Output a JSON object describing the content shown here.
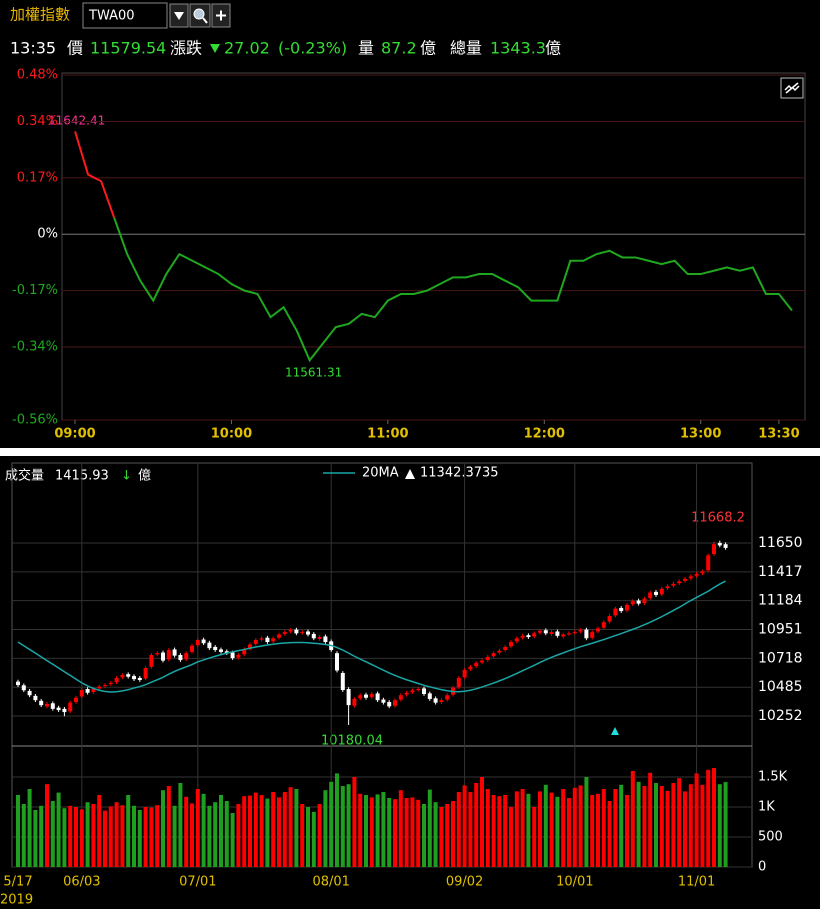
{
  "header": {
    "title": "加權指數",
    "symbol": "TWA00",
    "time": "13:35",
    "price_label": "價",
    "price": 11579.54,
    "change_label": "漲跌",
    "change": 27.02,
    "change_pct": "(-0.23%)",
    "volume_label": "量",
    "volume": 87.2,
    "volume_unit": "億",
    "total_label": "總量",
    "total": 1343.3,
    "total_unit": "億"
  },
  "chart_data": [
    {
      "type": "line",
      "x": [
        "09:00",
        "09:05",
        "09:10",
        "09:15",
        "09:20",
        "09:25",
        "09:30",
        "09:35",
        "09:40",
        "09:45",
        "09:50",
        "09:55",
        "10:00",
        "10:05",
        "10:10",
        "10:15",
        "10:20",
        "10:25",
        "10:30",
        "10:35",
        "10:40",
        "10:45",
        "10:50",
        "10:55",
        "11:00",
        "11:05",
        "11:10",
        "11:15",
        "11:20",
        "11:25",
        "11:30",
        "11:35",
        "11:40",
        "11:45",
        "11:50",
        "11:55",
        "12:00",
        "12:05",
        "12:10",
        "12:15",
        "12:20",
        "12:25",
        "12:30",
        "12:35",
        "12:40",
        "12:45",
        "12:50",
        "12:55",
        "13:00",
        "13:05",
        "13:10",
        "13:15",
        "13:20",
        "13:25",
        "13:30",
        "13:35"
      ],
      "values": [
        0.31,
        0.18,
        0.16,
        0.05,
        -0.06,
        -0.14,
        -0.2,
        -0.12,
        -0.06,
        -0.08,
        -0.1,
        -0.12,
        -0.15,
        -0.17,
        -0.18,
        -0.25,
        -0.22,
        -0.29,
        -0.38,
        -0.33,
        -0.28,
        -0.27,
        -0.24,
        -0.25,
        -0.2,
        -0.18,
        -0.18,
        -0.17,
        -0.15,
        -0.13,
        -0.13,
        -0.12,
        -0.12,
        -0.14,
        -0.16,
        -0.2,
        -0.2,
        -0.2,
        -0.08,
        -0.08,
        -0.06,
        -0.05,
        -0.07,
        -0.07,
        -0.08,
        -0.09,
        -0.08,
        -0.12,
        -0.12,
        -0.11,
        -0.1,
        -0.11,
        -0.1,
        -0.18,
        -0.18,
        -0.23
      ],
      "up_color": "#ff1a1a",
      "down_color": "#1fa81f",
      "xlim": [
        "08:55",
        "13:40"
      ],
      "xticks": [
        "09:00",
        "10:00",
        "11:00",
        "12:00",
        "13:00",
        "13:30"
      ],
      "ylim": [
        -0.56,
        0.48
      ],
      "yticks": [
        {
          "value": 0.48,
          "label": "0.48%"
        },
        {
          "value": 0.34,
          "label": "0.34%"
        },
        {
          "value": 0.17,
          "label": "0.17%"
        },
        {
          "value": 0,
          "label": "0%"
        },
        {
          "value": -0.17,
          "label": "-0.17%"
        },
        {
          "value": -0.34,
          "label": "-0.34%"
        },
        {
          "value": -0.56,
          "label": "-0.56%"
        }
      ],
      "grid": true,
      "high_label": 11642.41,
      "low_label": 11561.31
    },
    {
      "type": "candlestick",
      "volume_title": "成交量",
      "volume_unit": "億",
      "year": "2019",
      "categories": [
        "5/17",
        null,
        null,
        null,
        null,
        null,
        null,
        null,
        null,
        null,
        null,
        "06/03",
        null,
        null,
        null,
        null,
        null,
        null,
        null,
        null,
        null,
        null,
        null,
        null,
        null,
        null,
        null,
        null,
        null,
        null,
        null,
        "07/01",
        null,
        null,
        null,
        null,
        null,
        null,
        null,
        null,
        null,
        null,
        null,
        null,
        null,
        null,
        null,
        null,
        null,
        null,
        null,
        null,
        null,
        null,
        "08/01",
        null,
        null,
        null,
        null,
        null,
        null,
        null,
        null,
        null,
        null,
        null,
        null,
        null,
        null,
        null,
        null,
        null,
        null,
        null,
        null,
        null,
        null,
        "09/02",
        null,
        null,
        null,
        null,
        null,
        null,
        null,
        null,
        null,
        null,
        null,
        null,
        null,
        null,
        null,
        null,
        null,
        null,
        "10/01",
        null,
        null,
        null,
        null,
        null,
        null,
        null,
        null,
        null,
        null,
        null,
        null,
        null,
        null,
        null,
        null,
        null,
        null,
        null,
        null,
        "11/01",
        null,
        null,
        null,
        null,
        null
      ],
      "open": [
        10530,
        10500,
        10455,
        10415,
        10375,
        10330,
        10355,
        10320,
        10310,
        10290,
        10365,
        10410,
        10470,
        10445,
        10475,
        10495,
        10510,
        10525,
        10565,
        10590,
        10575,
        10560,
        10555,
        10650,
        10750,
        10765,
        10710,
        10790,
        10745,
        10710,
        10770,
        10825,
        10870,
        10845,
        10810,
        10790,
        10775,
        10765,
        10725,
        10750,
        10795,
        10835,
        10870,
        10885,
        10855,
        10885,
        10915,
        10935,
        10950,
        10925,
        10935,
        10915,
        10875,
        10895,
        10855,
        10760,
        10600,
        10470,
        10335,
        10395,
        10425,
        10405,
        10435,
        10385,
        10365,
        10335,
        10385,
        10425,
        10445,
        10465,
        10475,
        10435,
        10395,
        10365,
        10385,
        10425,
        10485,
        10565,
        10630,
        10655,
        10685,
        10705,
        10735,
        10765,
        10785,
        10815,
        10855,
        10885,
        10905,
        10895,
        10925,
        10945,
        10915,
        10935,
        10895,
        10915,
        10925,
        10935,
        10950,
        10885,
        10935,
        10965,
        11015,
        11065,
        11125,
        11105,
        11155,
        11185,
        11165,
        11205,
        11255,
        11235,
        11285,
        11305,
        11325,
        11345,
        11365,
        11385,
        11405,
        11430,
        11560,
        11650,
        11640
      ],
      "high": [
        10545,
        10515,
        10470,
        10430,
        10390,
        10365,
        10370,
        10335,
        10325,
        10375,
        10415,
        10477,
        10485,
        10485,
        10505,
        10517,
        10535,
        10575,
        10598,
        10605,
        10590,
        10575,
        10655,
        10760,
        10775,
        10780,
        10800,
        10805,
        10760,
        10775,
        10835,
        10881,
        10885,
        10860,
        10825,
        10805,
        10790,
        10780,
        10760,
        10805,
        10845,
        10881,
        10895,
        10900,
        10895,
        10925,
        10945,
        10962,
        10965,
        10945,
        10950,
        10930,
        10905,
        10910,
        10870,
        10775,
        10615,
        10485,
        10405,
        10435,
        10440,
        10445,
        10450,
        10400,
        10380,
        10395,
        10435,
        10455,
        10475,
        10485,
        10490,
        10450,
        10410,
        10395,
        10435,
        10495,
        10575,
        10639,
        10665,
        10695,
        10715,
        10745,
        10775,
        10795,
        10825,
        10865,
        10895,
        10915,
        10920,
        10935,
        10955,
        10960,
        10945,
        10950,
        10925,
        10935,
        10945,
        10962,
        10965,
        10945,
        10975,
        11025,
        11075,
        11135,
        11140,
        11165,
        11195,
        11200,
        11215,
        11265,
        11270,
        11295,
        11315,
        11335,
        11355,
        11375,
        11395,
        11415,
        11435,
        11565,
        11660,
        11668.2,
        11655
      ],
      "low": [
        10487,
        10445,
        10405,
        10365,
        10325,
        10315,
        10295,
        10285,
        10250,
        10275,
        10350,
        10395,
        10425,
        10430,
        10460,
        10480,
        10495,
        10510,
        10550,
        10555,
        10535,
        10528,
        10540,
        10635,
        10735,
        10685,
        10695,
        10725,
        10689,
        10695,
        10755,
        10810,
        10825,
        10785,
        10770,
        10755,
        10745,
        10705,
        10710,
        10735,
        10780,
        10820,
        10855,
        10835,
        10840,
        10870,
        10900,
        10920,
        10905,
        10910,
        10895,
        10865,
        10860,
        10835,
        10770,
        10605,
        10447,
        10180.04,
        10320,
        10380,
        10385,
        10390,
        10365,
        10345,
        10315,
        10320,
        10370,
        10410,
        10430,
        10450,
        10415,
        10375,
        10345,
        10350,
        10370,
        10410,
        10470,
        10550,
        10615,
        10640,
        10670,
        10690,
        10720,
        10750,
        10770,
        10800,
        10840,
        10870,
        10875,
        10880,
        10910,
        10905,
        10900,
        10885,
        10880,
        10900,
        10910,
        10920,
        10865,
        10870,
        10920,
        10950,
        11000,
        11050,
        11085,
        11090,
        11140,
        11145,
        11150,
        11190,
        11215,
        11220,
        11270,
        11290,
        11310,
        11330,
        11350,
        11370,
        11390,
        11415,
        11545,
        11615,
        11595
      ],
      "close": [
        10502,
        10460,
        10420,
        10380,
        10340,
        10350,
        10310,
        10300,
        10284,
        10360,
        10400,
        10462,
        10440,
        10470,
        10490,
        10502,
        10520,
        10560,
        10583,
        10570,
        10550,
        10543,
        10640,
        10745,
        10760,
        10700,
        10785,
        10740,
        10704,
        10760,
        10820,
        10866,
        10840,
        10800,
        10785,
        10770,
        10760,
        10720,
        10745,
        10790,
        10830,
        10866,
        10880,
        10850,
        10880,
        10910,
        10930,
        10947,
        10920,
        10930,
        10910,
        10880,
        10890,
        10850,
        10785,
        10620,
        10462,
        10340,
        10390,
        10420,
        10400,
        10430,
        10380,
        10360,
        10330,
        10380,
        10420,
        10440,
        10460,
        10470,
        10430,
        10390,
        10360,
        10380,
        10420,
        10480,
        10560,
        10624,
        10650,
        10680,
        10700,
        10730,
        10760,
        10780,
        10810,
        10850,
        10880,
        10900,
        10890,
        10920,
        10940,
        10920,
        10930,
        10900,
        10910,
        10920,
        10930,
        10947,
        10880,
        10930,
        10960,
        11010,
        11060,
        11120,
        11100,
        11150,
        11180,
        11160,
        11200,
        11250,
        11230,
        11280,
        11300,
        11320,
        11340,
        11360,
        11380,
        11400,
        11420,
        11550,
        11640,
        11630,
        11610
      ],
      "up_color": "#ff0000",
      "down_color": "#ffffff",
      "ylim": [
        10018,
        12296
      ],
      "yticks": [
        10252,
        10485,
        10718,
        10951,
        11184,
        11417,
        11650
      ],
      "grid": true,
      "ma": {
        "name": "20MA",
        "color": "#1aa6a6",
        "values": [
          10850,
          10820,
          10790,
          10760,
          10730,
          10700,
          10670,
          10640,
          10610,
          10580,
          10550,
          10520,
          10495,
          10475,
          10460,
          10450,
          10446,
          10448,
          10455,
          10465,
          10478,
          10490,
          10505,
          10525,
          10545,
          10565,
          10590,
          10612,
          10632,
          10650,
          10668,
          10690,
          10705,
          10720,
          10735,
          10748,
          10760,
          10770,
          10780,
          10790,
          10800,
          10810,
          10818,
          10826,
          10832,
          10838,
          10842,
          10845,
          10846,
          10846,
          10844,
          10840,
          10836,
          10830,
          10822,
          10805,
          10785,
          10760,
          10735,
          10712,
          10690,
          10668,
          10645,
          10622,
          10600,
          10580,
          10562,
          10545,
          10530,
          10515,
          10500,
          10488,
          10476,
          10465,
          10456,
          10450,
          10448,
          10452,
          10460,
          10472,
          10486,
          10502,
          10518,
          10536,
          10555,
          10575,
          10596,
          10618,
          10640,
          10662,
          10685,
          10706,
          10726,
          10745,
          10762,
          10780,
          10796,
          10812,
          10826,
          10840,
          10855,
          10870,
          10886,
          10902,
          10918,
          10935,
          10952,
          10970,
          10990,
          11010,
          11032,
          11055,
          11080,
          11105,
          11130,
          11158,
          11185,
          11210,
          11235,
          11260,
          11290,
          11318,
          11342.3735
        ]
      },
      "volume": {
        "up_color": "#ff0000",
        "down_color": "#1f9e1f",
        "values": [
          1200,
          1050,
          1300,
          950,
          1020,
          1380,
          1100,
          1240,
          980,
          1020,
          1000,
          960,
          1080,
          1050,
          1200,
          940,
          1010,
          1080,
          1030,
          1200,
          1020,
          950,
          1000,
          990,
          1030,
          1280,
          1350,
          1020,
          1400,
          1170,
          1060,
          1300,
          1220,
          1020,
          1080,
          1200,
          1100,
          900,
          1050,
          1180,
          1190,
          1240,
          1200,
          1140,
          1250,
          1160,
          1250,
          1330,
          1300,
          1050,
          1000,
          920,
          1050,
          1280,
          1420,
          1560,
          1350,
          1380,
          1500,
          1220,
          1200,
          1160,
          1210,
          1250,
          1150,
          1130,
          1280,
          1150,
          1160,
          1120,
          1050,
          1290,
          1080,
          1000,
          1050,
          1100,
          1250,
          1360,
          1250,
          1400,
          1500,
          1300,
          1200,
          1180,
          1200,
          1000,
          1260,
          1300,
          1220,
          1000,
          1260,
          1370,
          1240,
          1170,
          1300,
          1150,
          1320,
          1360,
          1500,
          1200,
          1220,
          1300,
          1100,
          1300,
          1370,
          1200,
          1600,
          1420,
          1350,
          1570,
          1400,
          1350,
          1270,
          1400,
          1480,
          1260,
          1380,
          1560,
          1370,
          1620,
          1650,
          1380,
          1415.93
        ],
        "ylim": [
          0,
          2000
        ],
        "yticks": [
          0,
          500,
          {
            "value": 1000,
            "label": "1K"
          },
          {
            "value": 1500,
            "label": "1.5K"
          }
        ]
      }
    }
  ]
}
